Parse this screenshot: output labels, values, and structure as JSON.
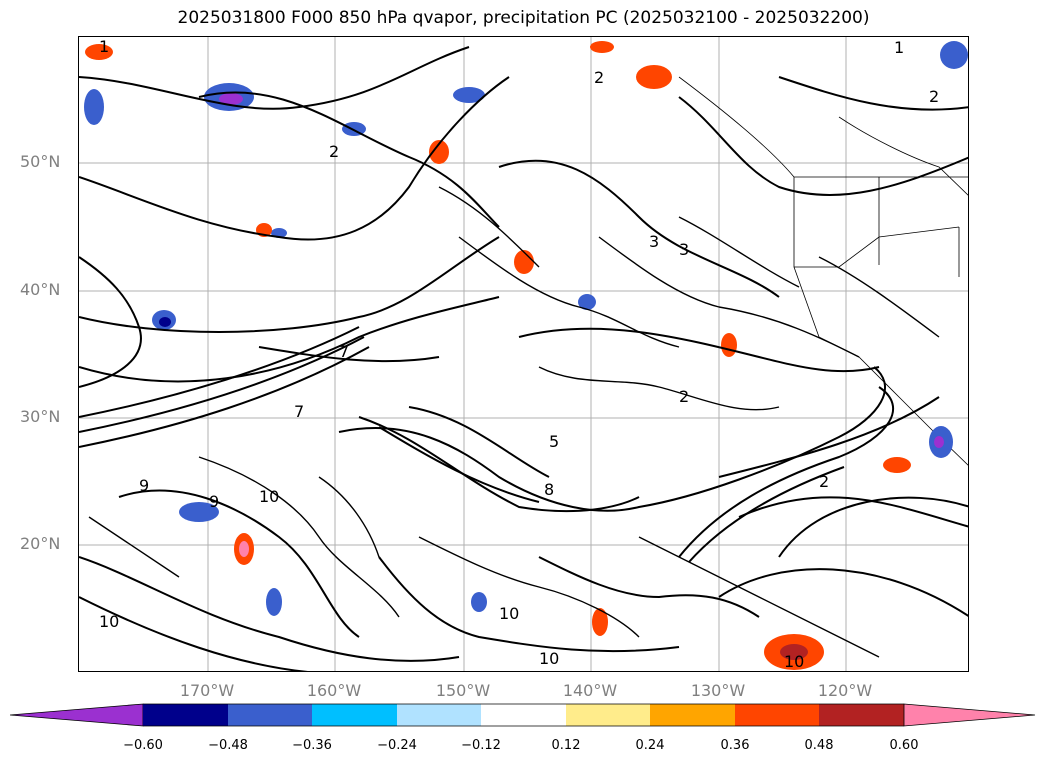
{
  "title": "2025031800 F000 850 hPa qvapor, precipitation PC (2025032100 - 2025032200)",
  "lat_labels": [
    "50°N",
    "40°N",
    "30°N",
    "20°N"
  ],
  "lon_labels": [
    "170°W",
    "160°W",
    "150°W",
    "140°W",
    "130°W",
    "120°W"
  ],
  "contour_labels": [
    "1",
    "2",
    "3",
    "5",
    "7",
    "8",
    "9",
    "10"
  ],
  "colorbar": {
    "ticks": [
      "−0.60",
      "−0.48",
      "−0.36",
      "−0.24",
      "−0.12",
      "0.12",
      "0.24",
      "0.36",
      "0.48",
      "0.60"
    ],
    "colors": [
      "#9b30d0",
      "#00008b",
      "#3a5fcd",
      "#00bfff",
      "#b0e2ff",
      "#ffffff",
      "#ffec8b",
      "#ffa500",
      "#ff4500",
      "#b22222",
      "#ff82ab"
    ]
  }
}
